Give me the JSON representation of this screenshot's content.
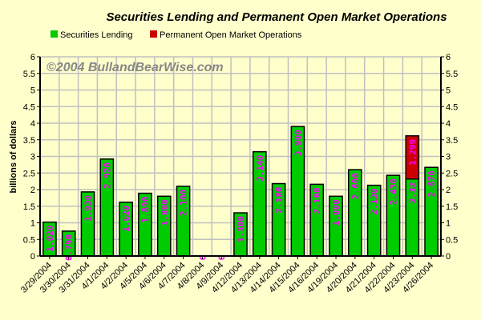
{
  "chart_data": {
    "type": "bar",
    "stacked": true,
    "title": "Securities Lending and Permanent Open Market Operations",
    "watermark": "©2004 BullandBearWise.com",
    "ylabel": "billions of dollars",
    "xlabel": "",
    "ylim": [
      0,
      6
    ],
    "yticks": [
      "0",
      "0.5",
      "1",
      "1.5",
      "2",
      "2.5",
      "3",
      "3.5",
      "4",
      "4.5",
      "5",
      "5.5",
      "6"
    ],
    "grid": true,
    "legend_position": "top",
    "categories": [
      "3/29/2004",
      "3/30/2004",
      "3/31/2004",
      "4/1/2004",
      "4/2/2004",
      "4/5/2004",
      "4/6/2004",
      "4/7/2004",
      "4/8/2004",
      "4/9/2004",
      "4/12/2004",
      "4/13/2004",
      "4/14/2004",
      "4/15/2004",
      "4/16/2004",
      "4/19/2004",
      "4/20/2004",
      "4/21/2004",
      "4/22/2004",
      "4/23/2004",
      "4/26/2004"
    ],
    "series": [
      {
        "name": "Securities Lending",
        "color": "#00CC00",
        "values": [
          1.02,
          0.75,
          1.93,
          2.92,
          1.62,
          1.89,
          1.8,
          2.1,
          0,
          0,
          1.3,
          3.14,
          2.18,
          3.9,
          2.16,
          1.8,
          2.6,
          2.13,
          2.43,
          2.32,
          2.67
        ],
        "labels": [
          "1.020",
          "0.750",
          "1.930",
          "2.920",
          "1.620",
          "1.890",
          "1.800",
          "2.100",
          "0",
          "0",
          "1.300",
          "3.140",
          "2.180",
          "3.900",
          "2.160",
          "1.800",
          "2.600",
          "2.130",
          "2.430",
          "2.32",
          "2.670"
        ]
      },
      {
        "name": "Permanent Open Market Operations",
        "color": "#CC0000",
        "values": [
          0,
          0,
          0,
          0,
          0,
          0,
          0,
          0,
          0,
          0,
          0,
          0,
          0,
          0,
          0,
          0,
          0,
          0,
          0,
          1.299,
          0
        ],
        "labels": [
          "",
          "",
          "",
          "",
          "",
          "",
          "",
          "",
          "",
          "",
          "",
          "",
          "",
          "",
          "",
          "",
          "",
          "",
          "",
          "1.299",
          ""
        ]
      }
    ],
    "label_color": "#FF00FF"
  }
}
